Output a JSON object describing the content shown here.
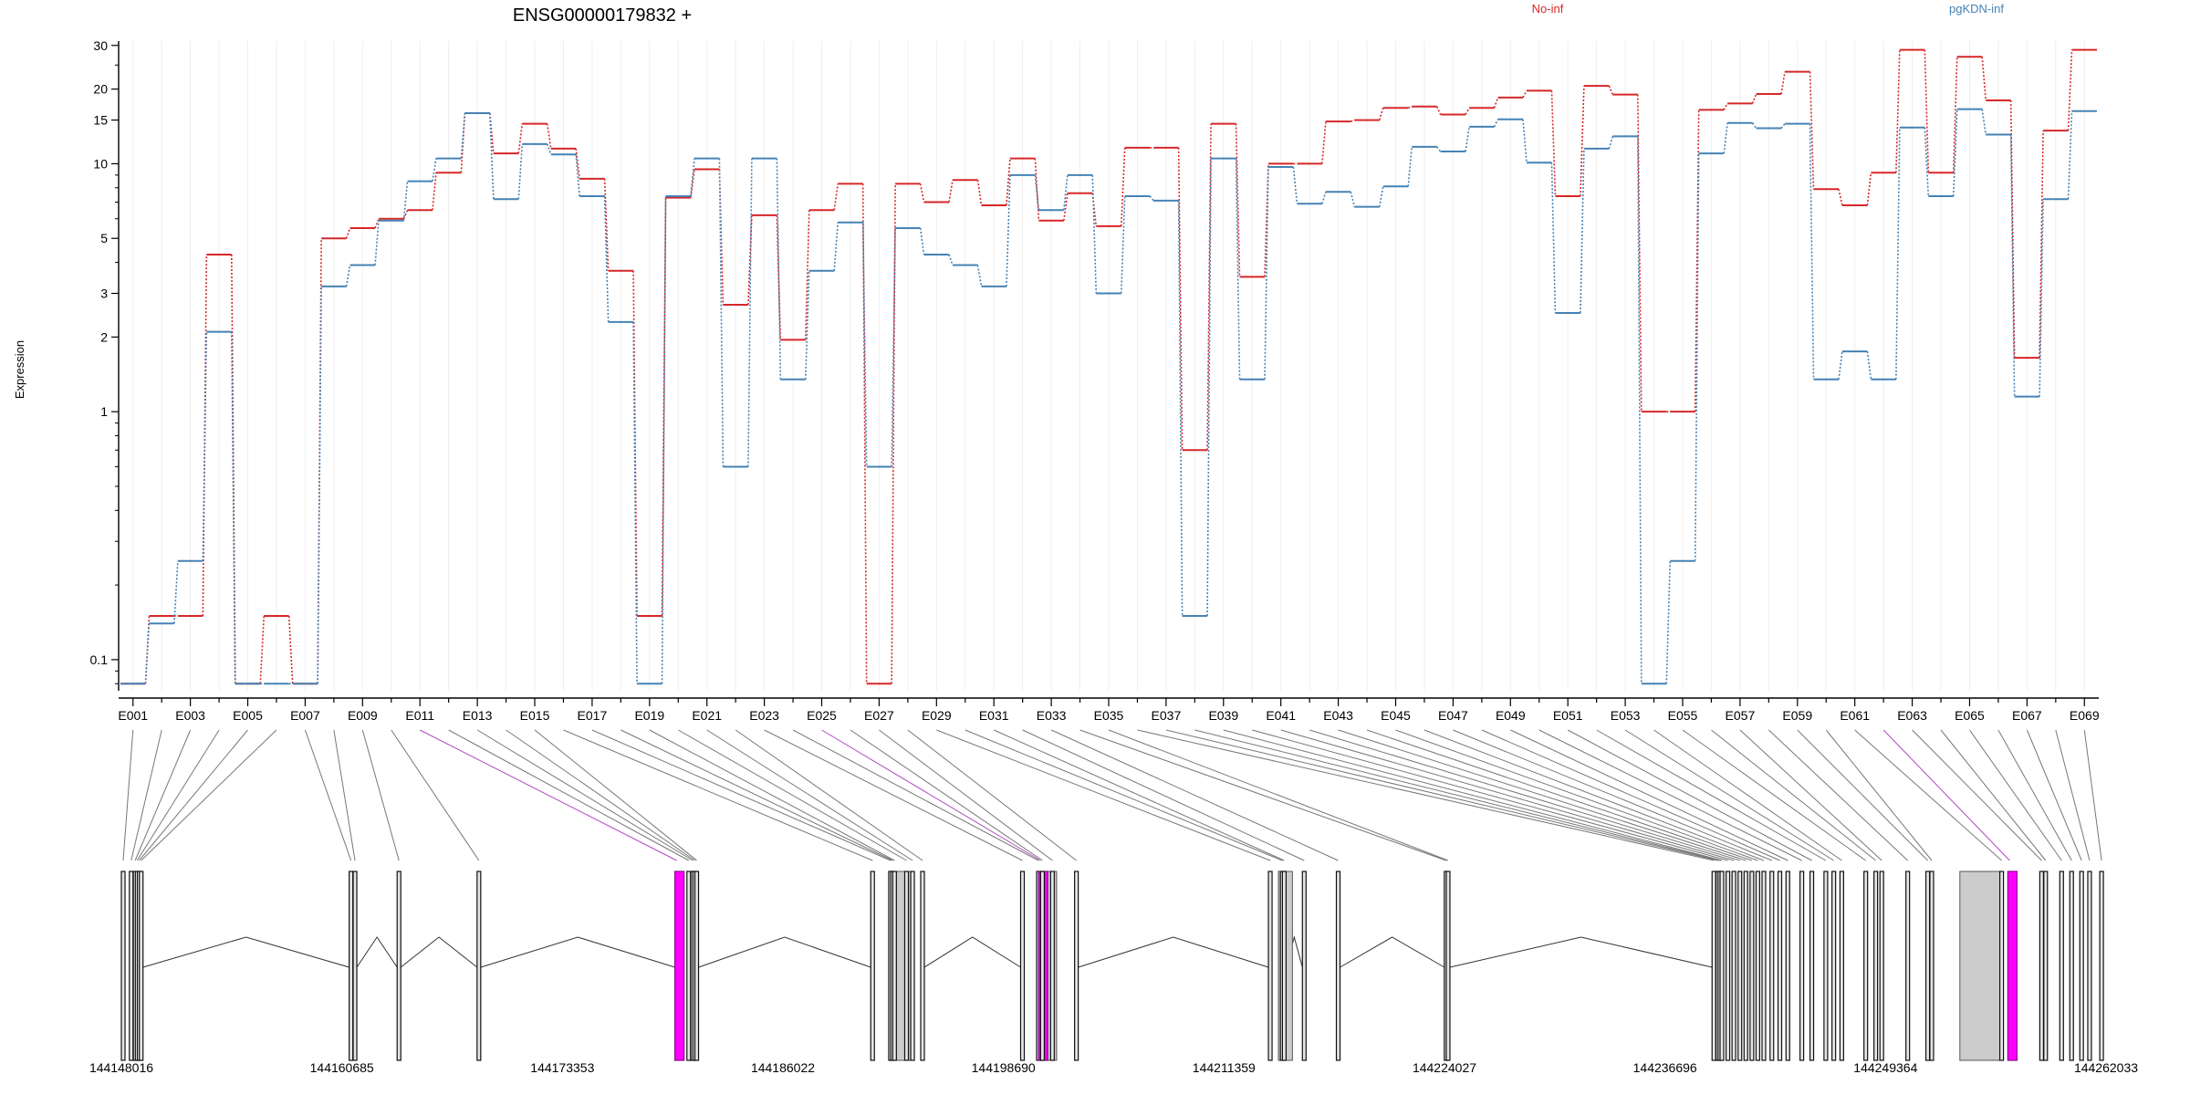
{
  "chart_data": {
    "type": "line",
    "title": "ENSG00000179832 +",
    "ylabel": "Expression",
    "xlabel": "",
    "y_scale": "log",
    "ylim": [
      0.07,
      34
    ],
    "y_ticks": [
      {
        "value": 0.1,
        "label": "0.1"
      },
      {
        "value": 1,
        "label": "1"
      },
      {
        "value": 2,
        "label": "2"
      },
      {
        "value": 3,
        "label": "3"
      },
      {
        "value": 5,
        "label": "5"
      },
      {
        "value": 10,
        "label": "10"
      },
      {
        "value": 15,
        "label": "15"
      },
      {
        "value": 20,
        "label": "20"
      },
      {
        "value": 30,
        "label": "30"
      }
    ],
    "exon_ids": [
      "E001",
      "E002",
      "E003",
      "E004",
      "E005",
      "E006",
      "E007",
      "E008",
      "E009",
      "E010",
      "E011",
      "E012",
      "E013",
      "E014",
      "E015",
      "E016",
      "E017",
      "E018",
      "E019",
      "E020",
      "E021",
      "E022",
      "E023",
      "E024",
      "E025",
      "E026",
      "E027",
      "E028",
      "E029",
      "E030",
      "E031",
      "E032",
      "E033",
      "E034",
      "E035",
      "E036",
      "E037",
      "E038",
      "E039",
      "E040",
      "E041",
      "E042",
      "E043",
      "E044",
      "E045",
      "E046",
      "E047",
      "E048",
      "E049",
      "E050",
      "E051",
      "E052",
      "E053",
      "E054",
      "E055",
      "E056",
      "E057",
      "E058",
      "E059",
      "E060",
      "E061",
      "E062",
      "E063",
      "E064",
      "E065",
      "E066",
      "E067",
      "E068",
      "E069"
    ],
    "x_tick_labels": [
      "E001",
      "E003",
      "E005",
      "E007",
      "E009",
      "E011",
      "E013",
      "E015",
      "E017",
      "E019",
      "E021",
      "E023",
      "E025",
      "E027",
      "E029",
      "E031",
      "E033",
      "E035",
      "E037",
      "E039",
      "E041",
      "E043",
      "E045",
      "E047",
      "E049",
      "E051",
      "E053",
      "E055",
      "E057",
      "E059",
      "E061",
      "E063",
      "E065",
      "E067",
      "E069"
    ],
    "legend_placement": "top",
    "series": [
      {
        "name": "No-inf",
        "color": "#d62728",
        "values": [
          0.08,
          0.15,
          0.15,
          4.3,
          0.08,
          0.15,
          0.08,
          5.0,
          5.5,
          6.0,
          6.5,
          9.2,
          16.0,
          11.0,
          14.5,
          11.5,
          8.7,
          3.7,
          0.15,
          7.3,
          9.5,
          2.7,
          6.2,
          1.95,
          6.5,
          8.3,
          0.08,
          8.3,
          7.0,
          8.6,
          6.8,
          10.5,
          5.9,
          7.6,
          5.6,
          11.6,
          11.6,
          0.7,
          14.5,
          3.5,
          10.0,
          10.0,
          14.8,
          15.0,
          16.8,
          17.0,
          15.8,
          16.8,
          18.5,
          19.7,
          7.4,
          20.6,
          19.0,
          1.0,
          1.0,
          16.5,
          17.5,
          19.1,
          23.5,
          7.9,
          6.8,
          9.2,
          28.8,
          9.2,
          27.0,
          18.0,
          1.65,
          13.6,
          28.8
        ]
      },
      {
        "name": "pgKDN-inf",
        "color": "#4682b4",
        "values": [
          0.08,
          0.14,
          0.25,
          2.1,
          0.08,
          0.08,
          0.08,
          3.2,
          3.9,
          5.9,
          8.5,
          10.5,
          16.0,
          7.2,
          12.0,
          10.9,
          7.4,
          2.3,
          0.08,
          7.4,
          10.5,
          0.6,
          10.5,
          1.35,
          3.7,
          5.8,
          0.6,
          5.5,
          4.3,
          3.9,
          3.2,
          9.0,
          6.5,
          9.0,
          3.0,
          7.4,
          7.1,
          0.15,
          10.5,
          1.35,
          9.7,
          6.9,
          7.7,
          6.7,
          8.1,
          11.7,
          11.2,
          14.1,
          15.1,
          10.1,
          2.5,
          11.5,
          12.9,
          0.08,
          0.25,
          11.0,
          14.6,
          13.9,
          14.5,
          1.35,
          1.75,
          1.35,
          14.0,
          7.4,
          16.6,
          13.1,
          1.15,
          7.2,
          16.3
        ]
      }
    ]
  },
  "gene_model": {
    "coordinate_labels": [
      "144148016",
      "144160685",
      "144173353",
      "144186022",
      "144198690",
      "144211359",
      "144224027",
      "144236696",
      "144249364",
      "144262033"
    ],
    "highlight_color": "#ff00ff",
    "highlighted_exons": [
      "E011",
      "E024",
      "E062"
    ],
    "exon_fill": "#d0d0d0"
  }
}
